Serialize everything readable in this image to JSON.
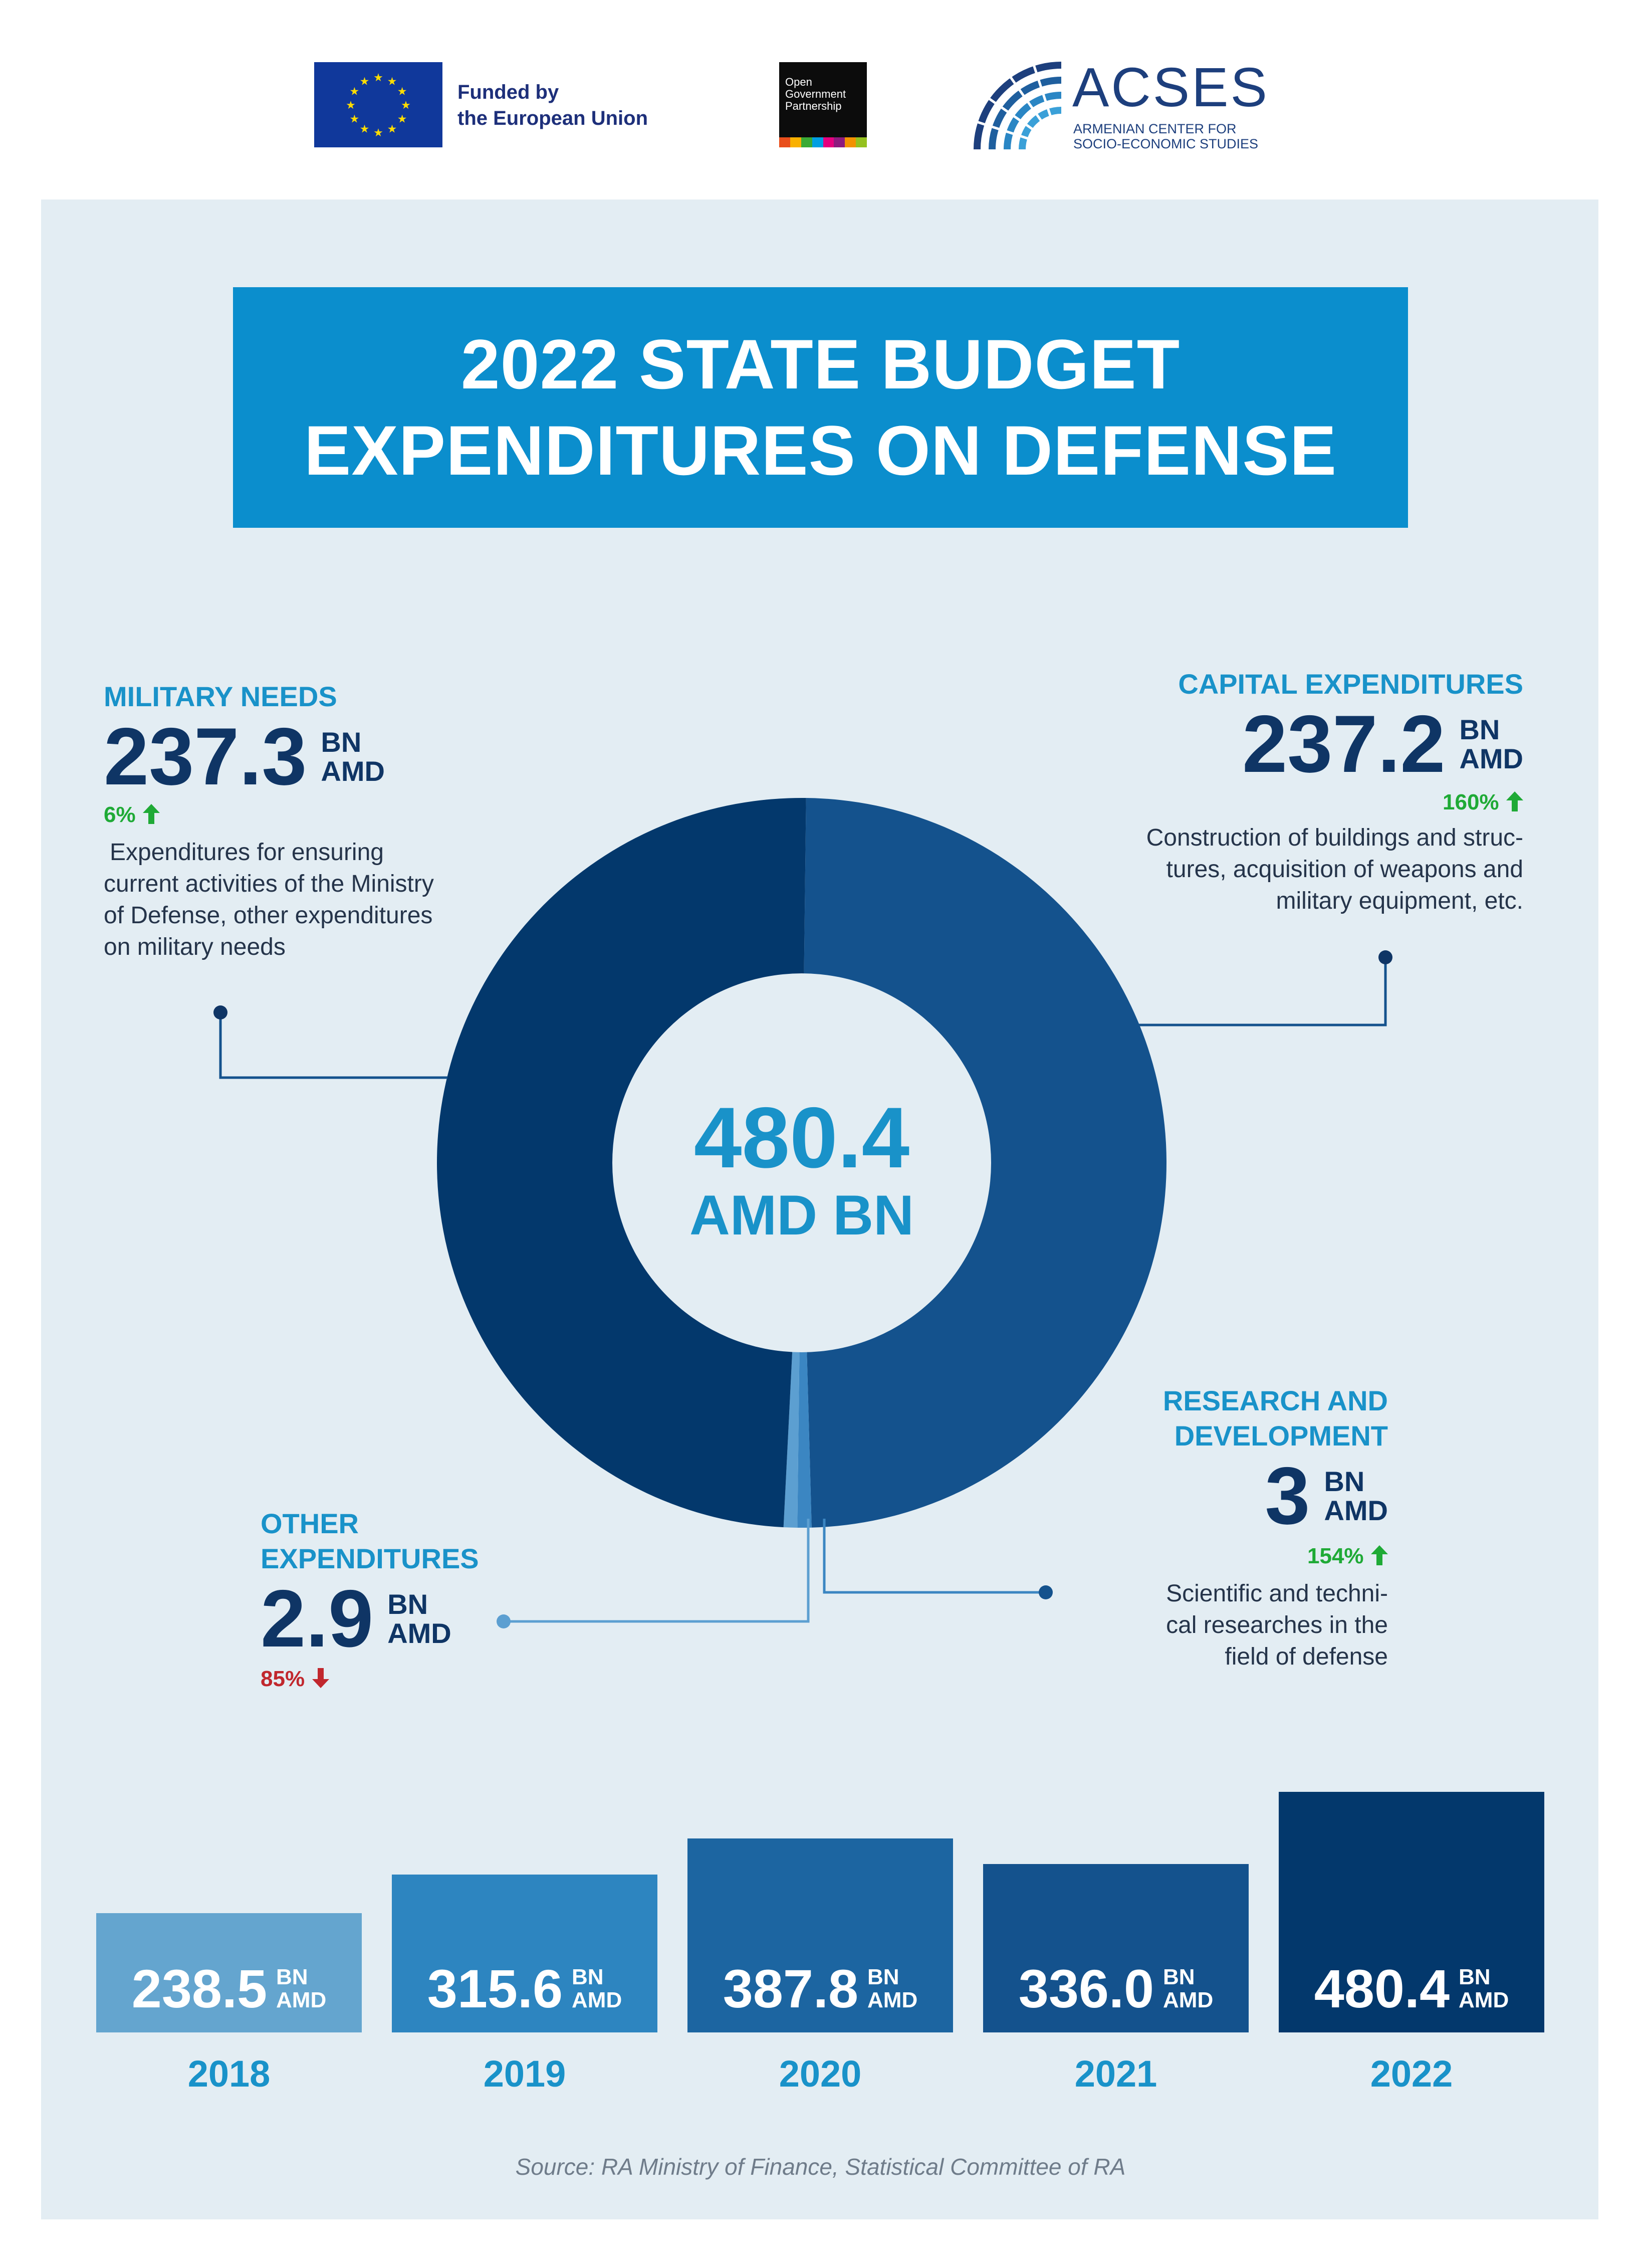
{
  "header": {
    "eu_line1": "Funded by",
    "eu_line2": "the European Union",
    "ogp_line1": "Open",
    "ogp_line2": "Government",
    "ogp_line3": "Partnership",
    "acses_name": "ACSES",
    "acses_sub1": "ARMENIAN CENTER FOR",
    "acses_sub2": "SOCIO-ECONOMIC STUDIES"
  },
  "title": {
    "line1": "2022 STATE BUDGET",
    "line2": "EXPENDITURES ON DEFENSE"
  },
  "center": {
    "value": "480.4",
    "unit": "AMD BN"
  },
  "categories": {
    "military": {
      "title": "MILITARY NEEDS",
      "value": "237.3",
      "unit1": "BN",
      "unit2": "AMD",
      "change": "6%",
      "change_dir": "up",
      "desc1": "Expenditures for ensuring",
      "desc2": "current activities of the Ministry",
      "desc3": "of Defense, other expenditures",
      "desc4": "on military needs"
    },
    "capital": {
      "title": "CAPITAL EXPENDITURES",
      "value": "237.2",
      "unit1": "BN",
      "unit2": "AMD",
      "change": "160%",
      "change_dir": "up",
      "desc1": "Construction of buildings and struc-",
      "desc2": "tures, acquisition of weapons and",
      "desc3": "military equipment, etc."
    },
    "research": {
      "title1": "RESEARCH AND",
      "title2": "DEVELOPMENT",
      "value": "3",
      "unit1": "BN",
      "unit2": "AMD",
      "change": "154%",
      "change_dir": "up",
      "desc1": "Scientific and techni-",
      "desc2": "cal researches in the",
      "desc3": "field of defense"
    },
    "other": {
      "title1": "OTHER",
      "title2": "EXPENDITURES",
      "value": "2.9",
      "unit1": "BN",
      "unit2": "AMD",
      "change": "85%",
      "change_dir": "down"
    }
  },
  "colors": {
    "military": "#03386c",
    "capital": "#14528d",
    "research": "#3b86c2",
    "other": "#5c9fd1",
    "panel": "#e3edf3",
    "title_bg": "#0b8ecd",
    "accent": "#1992c9",
    "up": "#1faa36",
    "down": "#c1272d"
  },
  "chart_data": [
    {
      "type": "pie",
      "center_label": "480.4 AMD BN",
      "total": 480.4,
      "unit": "BN AMD",
      "slices": [
        {
          "name": "CAPITAL EXPENDITURES",
          "value": 237.2,
          "change": "160%",
          "color": "#14528d"
        },
        {
          "name": "RESEARCH AND DEVELOPMENT",
          "value": 3,
          "change": "154%",
          "color": "#3b86c2"
        },
        {
          "name": "OTHER EXPENDITURES",
          "value": 2.9,
          "change": "85%",
          "color": "#5c9fd1"
        },
        {
          "name": "MILITARY NEEDS",
          "value": 237.3,
          "change": "6%",
          "color": "#03386c"
        }
      ]
    },
    {
      "type": "bar",
      "categories": [
        "2018",
        "2019",
        "2020",
        "2021",
        "2022"
      ],
      "values": [
        238.5,
        315.6,
        387.8,
        336.0,
        480.4
      ],
      "labels": [
        "238.5",
        "315.6",
        "387.8",
        "336.0",
        "480.4"
      ],
      "unit1": "BN",
      "unit2": "AMD",
      "colors": [
        "#64a5cf",
        "#2d85c0",
        "#1c65a1",
        "#14528d",
        "#03386c"
      ]
    }
  ],
  "source": "Source: RA Ministry of Finance, Statistical Committee of RA"
}
